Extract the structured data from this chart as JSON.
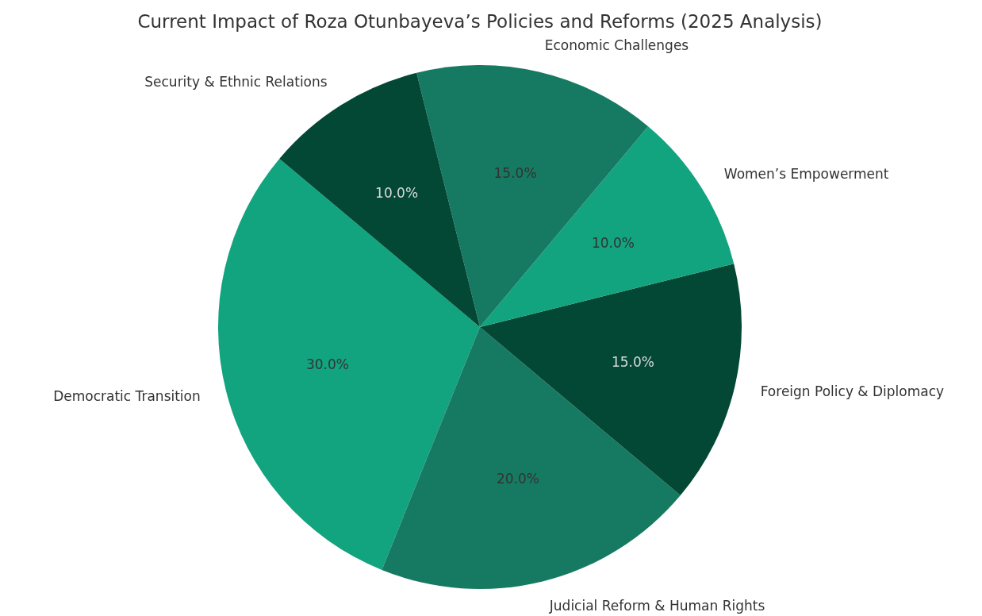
{
  "chart_data": {
    "type": "pie",
    "title": "Current Impact of Roza Otunbayeva’s Policies and Reforms (2025 Analysis)",
    "categories": [
      "Democratic Transition",
      "Judicial Reform & Human Rights",
      "Foreign Policy & Diplomacy",
      "Women’s Empowerment",
      "Economic Challenges",
      "Security & Ethnic Relations"
    ],
    "values": [
      30,
      20,
      15,
      10,
      15,
      10
    ],
    "colors": [
      "#12a37f",
      "#167a62",
      "#034835",
      "#12a37f",
      "#167a62",
      "#034835"
    ],
    "value_labels": [
      "30.0%",
      "20.0%",
      "15.0%",
      "10.0%",
      "15.0%",
      "10.0%"
    ]
  }
}
